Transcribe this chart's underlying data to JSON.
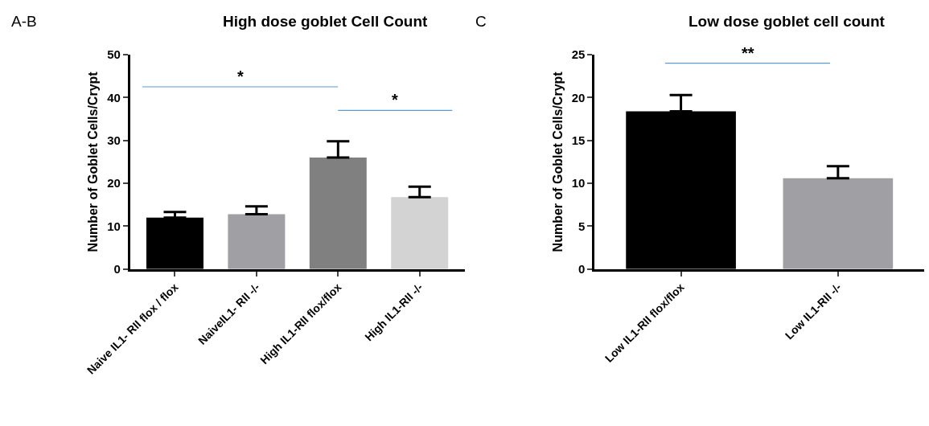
{
  "chart_data": [
    {
      "type": "bar",
      "title": "High dose goblet Cell Count",
      "ylabel": "Number of Goblet Cells/Crypt",
      "categories": [
        "Naive IL1- RII flox / flox",
        "NaiveIL1- RII -/-",
        "High IL1-RII flox/flox",
        "High IL1-RII -/-"
      ],
      "values": [
        12,
        12.8,
        26,
        16.8
      ],
      "colors": [
        "#000000",
        "#a0a0a4",
        "#808080",
        "#d3d3d3"
      ],
      "errors": [
        [
          12,
          13.3
        ],
        [
          12.8,
          14.6
        ],
        [
          26,
          29.8
        ],
        [
          16.8,
          19.2
        ]
      ],
      "ylim": [
        0,
        50
      ],
      "yticks": [
        0,
        10,
        20,
        30,
        40,
        50
      ],
      "annotations": [
        "A-B",
        "*",
        "*"
      ]
    },
    {
      "type": "bar",
      "title": "Low dose goblet cell count",
      "ylabel": "Number of Goblet Cells/Crypt",
      "categories": [
        "Low IL1-RII flox/flox",
        "Low IL1-RII -/-"
      ],
      "values": [
        18.4,
        10.6
      ],
      "colors": [
        "#000000",
        "#a0a0a4"
      ],
      "errors": [
        [
          18.4,
          20.3
        ],
        [
          10.6,
          12.0
        ]
      ],
      "ylim": [
        0,
        25
      ],
      "yticks": [
        0,
        5,
        10,
        15,
        20,
        25
      ],
      "annotations": [
        "C",
        "**"
      ]
    }
  ]
}
